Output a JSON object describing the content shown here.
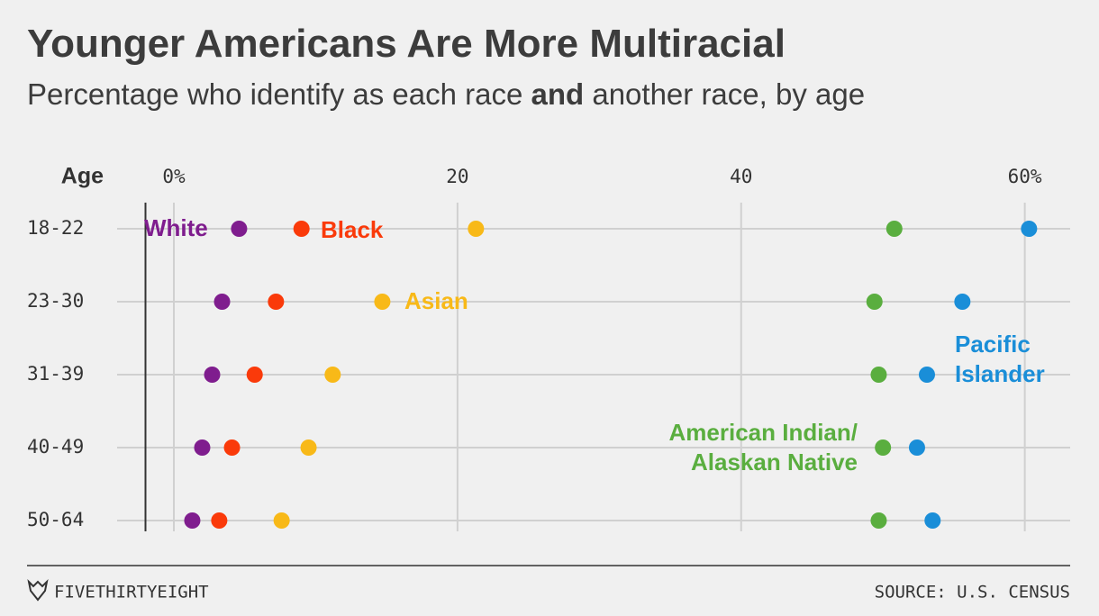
{
  "chart_data": {
    "type": "dot",
    "title": "Younger Americans Are More Multiracial",
    "subtitle_parts": [
      "Percentage who identify as each race ",
      "and",
      " another race, by age"
    ],
    "y_header": "Age",
    "categories": [
      "18-22",
      "23-30",
      "31-39",
      "40-49",
      "50-64"
    ],
    "xlim": [
      -2,
      63.2
    ],
    "xticks": [
      {
        "value": 0,
        "label": "0%"
      },
      20,
      40,
      {
        "value": 60,
        "label": "60%"
      }
    ],
    "grid": true,
    "series": [
      {
        "name": "White",
        "color": "#7f1d8e",
        "values": [
          4.6,
          3.4,
          2.7,
          2.0,
          1.3
        ]
      },
      {
        "name": "Black",
        "color": "#fa3a0a",
        "values": [
          9.0,
          7.2,
          5.7,
          4.1,
          3.2
        ]
      },
      {
        "name": "Asian",
        "color": "#f8b918",
        "values": [
          21.3,
          14.7,
          11.2,
          9.5,
          7.6
        ]
      },
      {
        "name": "Pacific Islander",
        "color": "#1a8ed8",
        "values": [
          60.3,
          55.6,
          53.1,
          52.4,
          53.5
        ]
      },
      {
        "name": "American Indian/ Alaskan Native",
        "color": "#5aae3f",
        "values": [
          50.8,
          49.4,
          49.7,
          50.0,
          49.7
        ]
      }
    ],
    "footer_brand": "FIVETHIRTYEIGHT",
    "source": "SOURCE: U.S. CENSUS"
  }
}
